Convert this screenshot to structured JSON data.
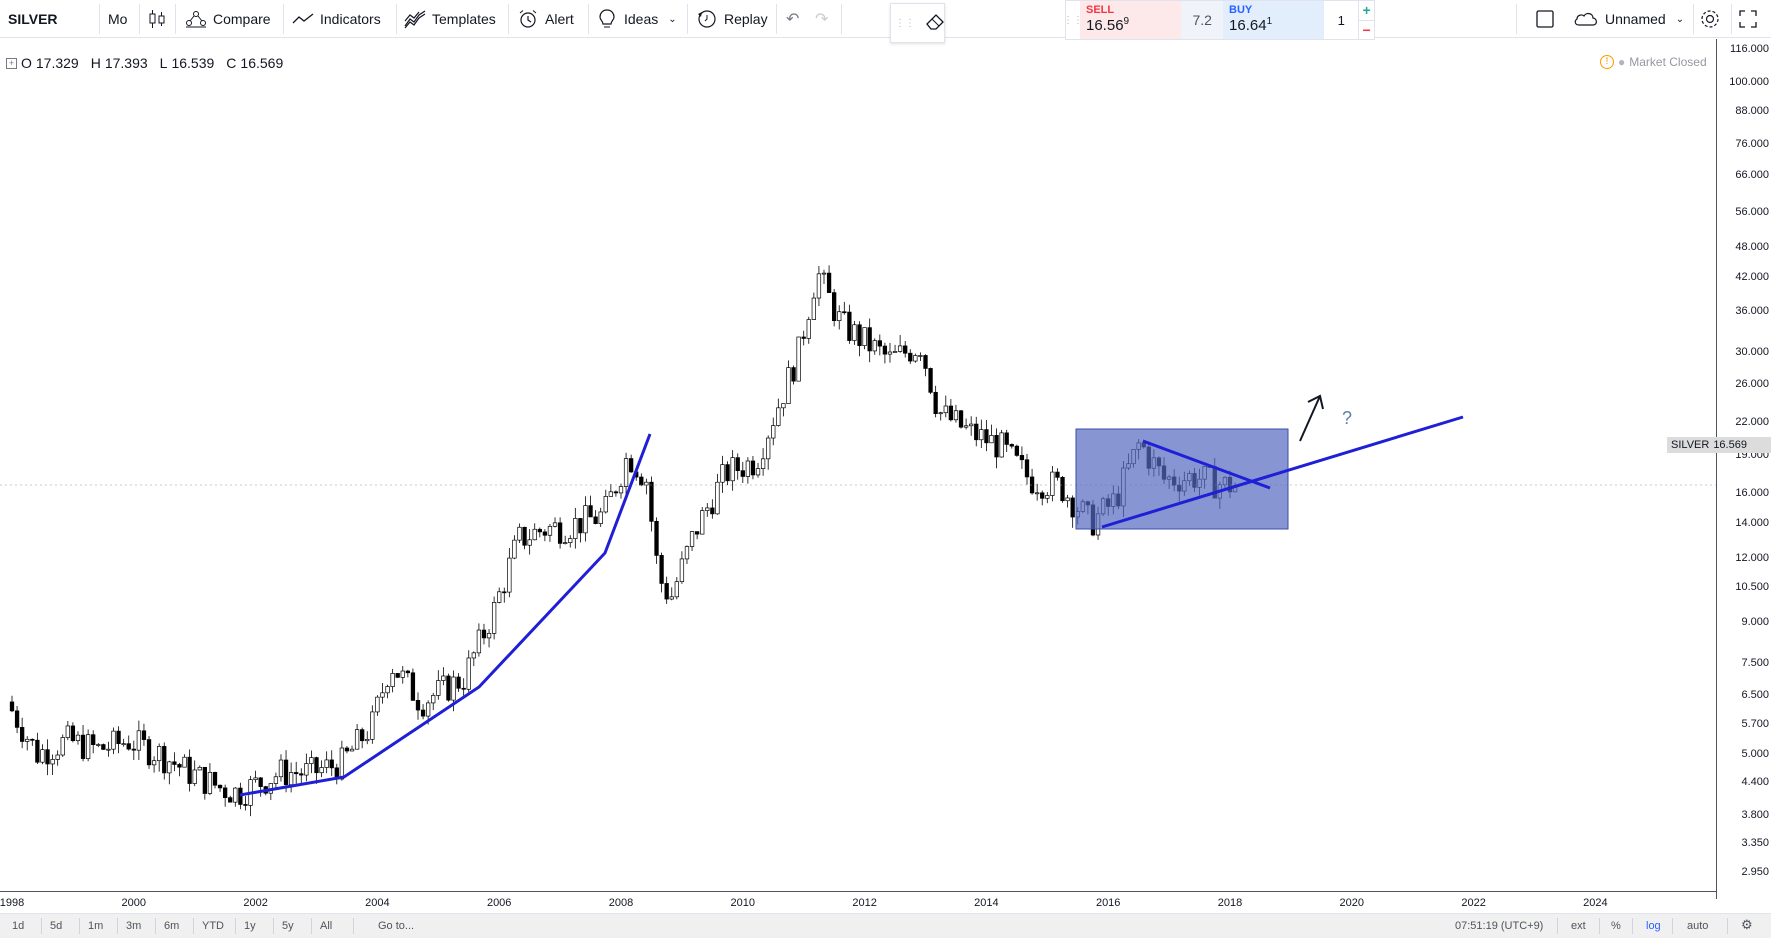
{
  "toolbar": {
    "symbol": "SILVER",
    "interval": "Mo",
    "compare_label": "Compare",
    "indicators_label": "Indicators",
    "templates_label": "Templates",
    "alert_label": "Alert",
    "ideas_label": "Ideas",
    "replay_label": "Replay",
    "layout_name": "Unnamed"
  },
  "trade": {
    "sell_label": "SELL",
    "sell_price": "16.56",
    "sell_sup": "9",
    "spread": "7.2",
    "buy_label": "BUY",
    "buy_price": "16.64",
    "buy_sup": "1",
    "quantity": "1",
    "plus": "+",
    "minus": "−",
    "sell_color": "#f23645",
    "buy_color": "#2962ff"
  },
  "legend": {
    "o_label": "O",
    "o_value": "17.329",
    "h_label": "H",
    "h_value": "17.393",
    "l_label": "L",
    "l_value": "16.539",
    "c_label": "C",
    "c_value": "16.569"
  },
  "market_status": "Market Closed",
  "last_price": {
    "symbol": "SILVER",
    "value": "16.569"
  },
  "price_ticks": [
    "116.000",
    "100.000",
    "88.000",
    "76.000",
    "66.000",
    "56.000",
    "48.000",
    "42.000",
    "36.000",
    "30.000",
    "26.000",
    "22.000",
    "19.000",
    "16.000",
    "14.000",
    "12.000",
    "10.500",
    "9.000",
    "7.500",
    "6.500",
    "5.700",
    "5.000",
    "4.400",
    "3.800",
    "3.350",
    "2.950"
  ],
  "time_ticks": [
    "1998",
    "2000",
    "2002",
    "2004",
    "2006",
    "2008",
    "2010",
    "2012",
    "2014",
    "2016",
    "2018",
    "2020",
    "2022",
    "2024"
  ],
  "drawings": {
    "question_mark": "?",
    "line_color": "#1f1fd6",
    "box_color": "#5469c1"
  },
  "bottom_bar": {
    "ranges": [
      "1d",
      "5d",
      "1m",
      "3m",
      "6m",
      "YTD",
      "1y",
      "5y",
      "All"
    ],
    "goto": "Go to...",
    "clock": "07:51:19 (UTC+9)",
    "ext": "ext",
    "percent": "%",
    "log": "log",
    "auto": "auto"
  },
  "chart_data": {
    "type": "candlestick",
    "scale": "log",
    "x_range": [
      1998,
      2025
    ],
    "y_range": [
      2.95,
      116
    ],
    "series": [
      {
        "x": [
          1998.0,
          1998.5,
          1999.0,
          1999.5,
          2000.0,
          2000.5,
          2001.0,
          2001.5,
          2001.8,
          2002.5,
          2003.0,
          2003.5,
          2004.0,
          2004.3,
          2004.8,
          2005.5,
          2006.0,
          2006.4,
          2006.8,
          2007.2,
          2007.8,
          2008.2,
          2008.5,
          2008.7,
          2008.9,
          2009.3,
          2009.8,
          2010.3,
          2010.8,
          2011.0,
          2011.3,
          2011.7,
          2012.0,
          2012.5,
          2013.0,
          2013.3,
          2013.8,
          2014.3,
          2014.8,
          2015.3,
          2015.8,
          2016.2,
          2016.6,
          2017.0,
          2017.5,
          2018.0
        ],
        "y": [
          6.3,
          5.0,
          5.3,
          5.1,
          5.3,
          5.0,
          4.6,
          4.3,
          4.2,
          4.6,
          4.6,
          4.8,
          5.7,
          7.5,
          6.3,
          7.0,
          9.5,
          13.0,
          13.6,
          13.8,
          14.5,
          19.0,
          17.0,
          11.0,
          10.0,
          13.5,
          17.5,
          18.5,
          26.0,
          30.0,
          43.0,
          34.0,
          32.0,
          29.0,
          31.0,
          23.0,
          21.0,
          19.8,
          17.0,
          16.5,
          14.0,
          15.5,
          20.0,
          17.0,
          17.2,
          16.57
        ]
      }
    ]
  }
}
